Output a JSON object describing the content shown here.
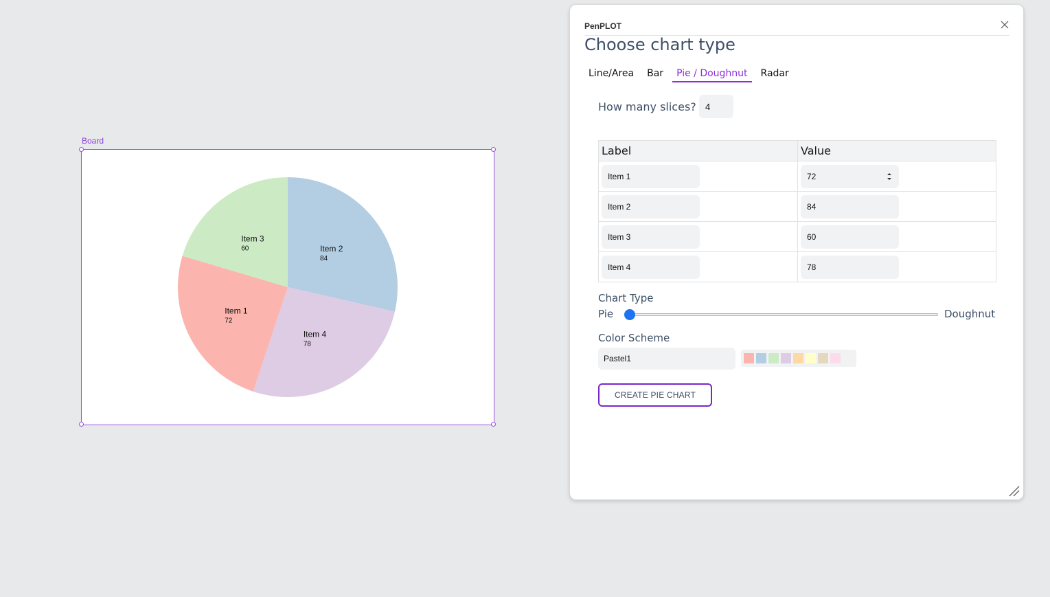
{
  "board": {
    "label": "Board"
  },
  "chart_data": {
    "type": "pie",
    "categories": [
      "Item 1",
      "Item 2",
      "Item 3",
      "Item 4"
    ],
    "values": [
      72,
      84,
      60,
      78
    ],
    "slice_colors": [
      "#fbb4ae",
      "#b3cde3",
      "#ccebc5",
      "#decbe4"
    ],
    "start_angle_deg": 0,
    "direction": "clockwise",
    "order_from_top": [
      "Item 2",
      "Item 4",
      "Item 1",
      "Item 3"
    ]
  },
  "panel": {
    "app_name": "PenPLOT",
    "heading": "Choose chart type",
    "tabs": [
      {
        "label": "Line/Area",
        "active": false
      },
      {
        "label": "Bar",
        "active": false
      },
      {
        "label": "Pie / Doughnut",
        "active": true
      },
      {
        "label": "Radar",
        "active": false
      }
    ],
    "slices_label": "How many slices?",
    "slices_value": "4",
    "table": {
      "headers": [
        "Label",
        "Value"
      ],
      "rows": [
        {
          "label": "Item 1",
          "value": "72"
        },
        {
          "label": "Item 2",
          "value": "84"
        },
        {
          "label": "Item 3",
          "value": "60"
        },
        {
          "label": "Item 4",
          "value": "78"
        }
      ]
    },
    "chart_type": {
      "label": "Chart Type",
      "left": "Pie",
      "right": "Doughnut",
      "slider_value": 0
    },
    "color_scheme": {
      "label": "Color Scheme",
      "selected": "Pastel1",
      "swatches": [
        "#fbb4ae",
        "#b3cde3",
        "#ccebc5",
        "#decbe4",
        "#fed9a6",
        "#ffffcc",
        "#e5d8bd",
        "#fddaec",
        "#f2f2f2"
      ]
    },
    "create_button": "CREATE PIE CHART",
    "accent": "#8b2fd8"
  }
}
